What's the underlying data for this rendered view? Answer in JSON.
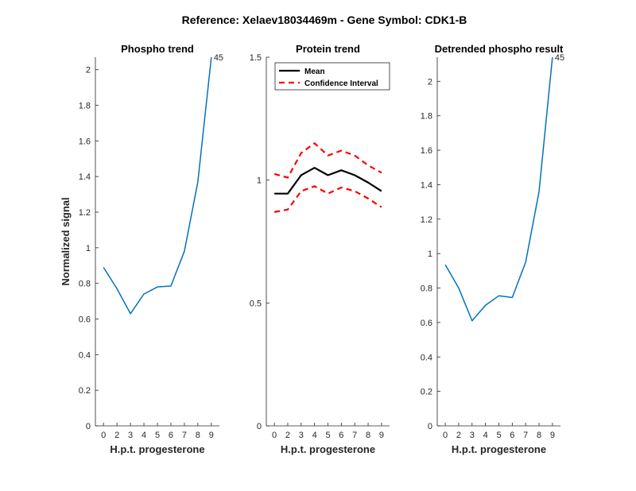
{
  "figure_title": "Reference:  Xelaev18034469m - Gene Symbol:  CDK1-B",
  "colors": {
    "series": "#0072BD",
    "mean": "#000000",
    "ci": "#FF0000",
    "axis": "#262626"
  },
  "chart_data": [
    {
      "type": "line",
      "title": "Phospho trend",
      "xlabel": "H.p.t. progesterone",
      "ylabel": "Normalized signal",
      "categories": [
        "0",
        "2",
        "3",
        "4",
        "5",
        "6",
        "7",
        "8",
        "9"
      ],
      "xlim": [
        -0.6,
        8.6
      ],
      "ylim": [
        0,
        2.07
      ],
      "yticks": [
        0,
        0.2,
        0.4,
        0.6,
        0.8,
        1,
        1.2,
        1.4,
        1.6,
        1.8,
        2
      ],
      "ytick_labels": [
        "0",
        "0.2",
        "0.4",
        "0.6",
        "0.8",
        "1",
        "1.2",
        "1.4",
        "1.6",
        "1.8",
        "2"
      ],
      "series": [
        {
          "values": [
            0.89,
            0.77,
            0.63,
            0.74,
            0.78,
            0.785,
            0.98,
            1.37,
            2.07
          ]
        }
      ],
      "annotation": "45"
    },
    {
      "type": "line",
      "title": "Protein trend",
      "xlabel": "H.p.t. progesterone",
      "ylabel": "",
      "categories": [
        "0",
        "2",
        "3",
        "4",
        "5",
        "6",
        "7",
        "8",
        "9"
      ],
      "xlim": [
        -0.6,
        8.6
      ],
      "ylim": [
        0,
        1.5
      ],
      "yticks": [
        0,
        0.5,
        1,
        1.5
      ],
      "ytick_labels": [
        "0",
        "0.5",
        "1",
        "1.5"
      ],
      "series": [
        {
          "name": "Mean",
          "values": [
            0.945,
            0.945,
            1.02,
            1.05,
            1.02,
            1.04,
            1.02,
            0.99,
            0.955
          ]
        },
        {
          "name": "Confidence Interval",
          "values": [
            1.025,
            1.01,
            1.11,
            1.15,
            1.1,
            1.12,
            1.1,
            1.06,
            1.03
          ]
        },
        {
          "values": [
            0.87,
            0.88,
            0.955,
            0.975,
            0.945,
            0.97,
            0.955,
            0.925,
            0.89
          ]
        }
      ],
      "legend": {
        "placement": "top-left",
        "entries": [
          "Mean",
          "Confidence Interval"
        ]
      }
    },
    {
      "type": "line",
      "title": "Detrended phospho result",
      "xlabel": "H.p.t. progesterone",
      "ylabel": "",
      "categories": [
        "0",
        "2",
        "3",
        "4",
        "5",
        "6",
        "7",
        "8",
        "9"
      ],
      "xlim": [
        -0.6,
        8.6
      ],
      "ylim": [
        0,
        2.14
      ],
      "yticks": [
        0,
        0.2,
        0.4,
        0.6,
        0.8,
        1,
        1.2,
        1.4,
        1.6,
        1.8,
        2
      ],
      "ytick_labels": [
        "0",
        "0.2",
        "0.4",
        "0.6",
        "0.8",
        "1",
        "1.2",
        "1.4",
        "1.6",
        "1.8",
        "2"
      ],
      "series": [
        {
          "values": [
            0.935,
            0.8,
            0.61,
            0.7,
            0.755,
            0.745,
            0.95,
            1.36,
            2.14
          ]
        }
      ],
      "annotation": "45"
    }
  ]
}
